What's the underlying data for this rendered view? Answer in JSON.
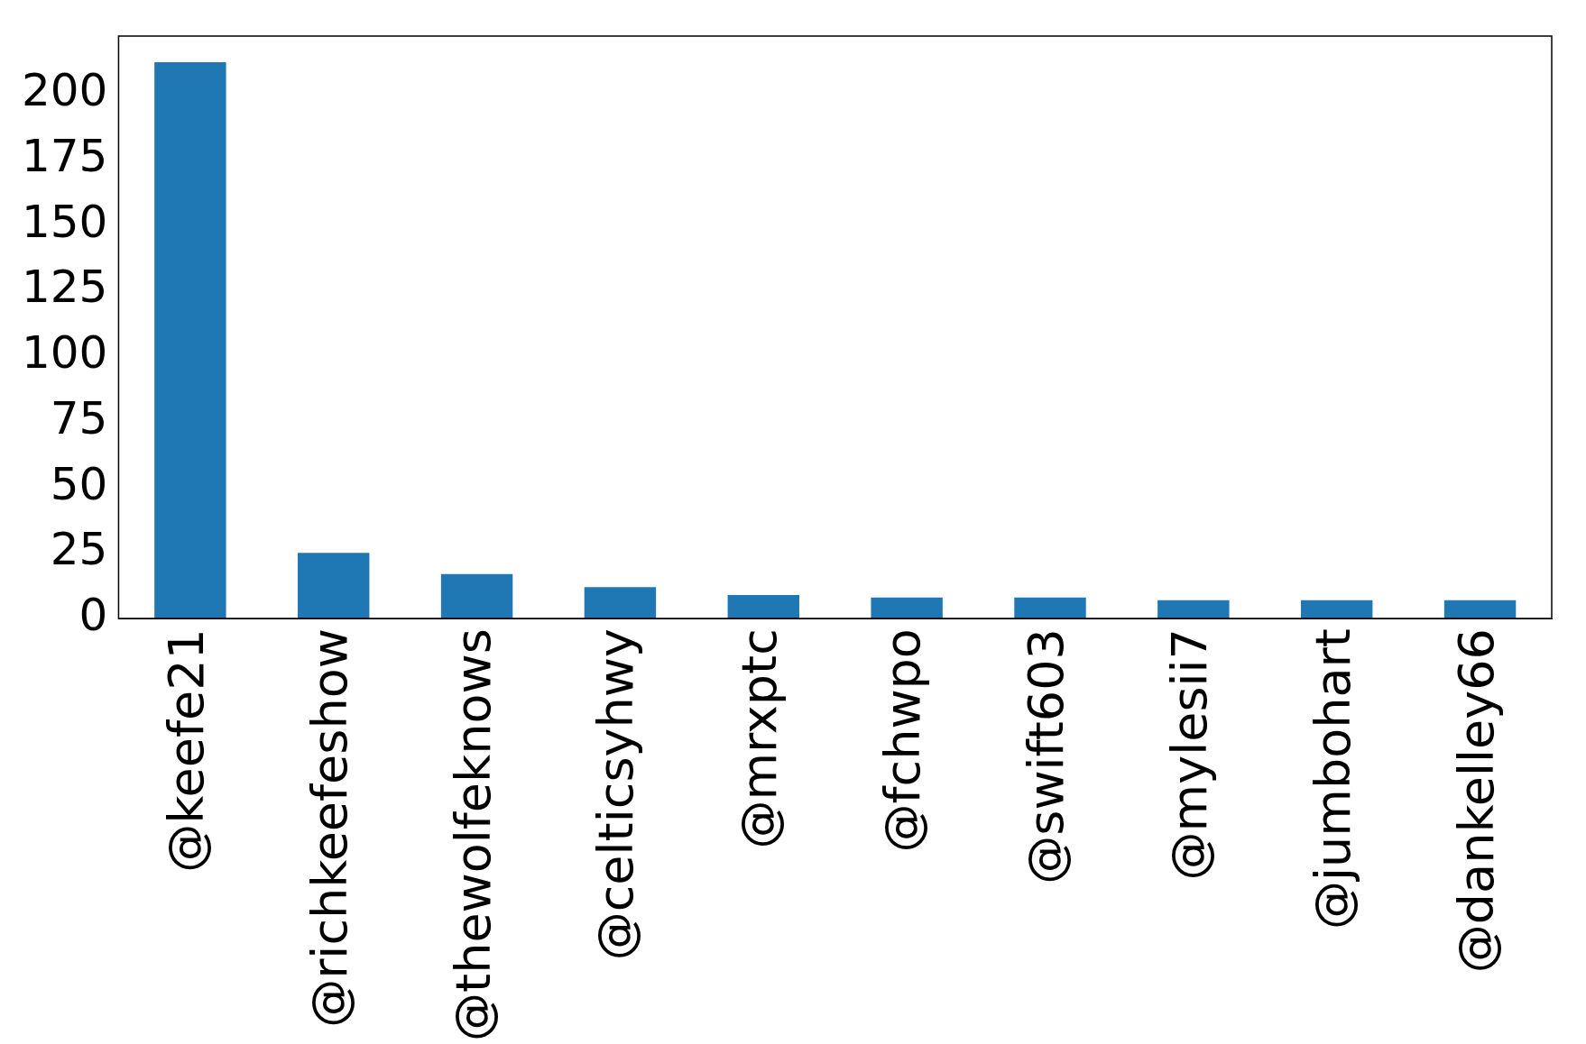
{
  "chart_data": {
    "type": "bar",
    "categories": [
      "@keefe21",
      "@richkeefeshow",
      "@thewolfeknows",
      "@celticsyhwy",
      "@mrxptc",
      "@fchwpo",
      "@swift603",
      "@mylesii7",
      "@jumbohart",
      "@dankelley66"
    ],
    "values": [
      212,
      25,
      17,
      12,
      9,
      8,
      8,
      7,
      7,
      7
    ],
    "color": "#1f77b4",
    "ylim": [
      0,
      222
    ],
    "yticks": [
      0,
      25,
      50,
      75,
      100,
      125,
      150,
      175,
      200
    ],
    "grid": false,
    "legend": false
  }
}
